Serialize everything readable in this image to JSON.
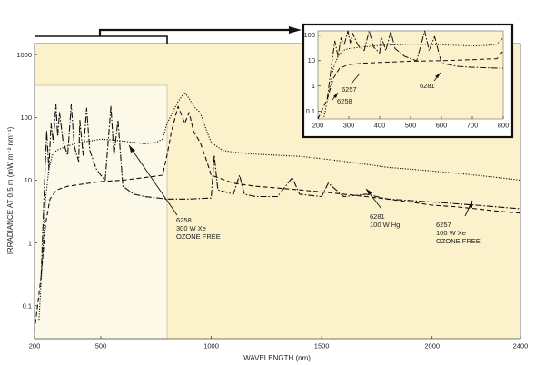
{
  "chart_data": {
    "type": "line",
    "title": "",
    "xlabel": "WAVELENGTH (nm)",
    "ylabel": "IRRADIANCE AT 0.5 m (mW m⁻² nm⁻¹)",
    "xlim": [
      200,
      2400
    ],
    "ylim": [
      0.03,
      1500
    ],
    "yscale": "log",
    "x_ticks": [
      200,
      500,
      1000,
      1500,
      2000,
      2400
    ],
    "y_ticks": [
      0.1,
      1,
      10,
      100,
      1000
    ],
    "y_tick_labels": [
      "0.1",
      "1",
      "10",
      "100",
      "1000"
    ],
    "series": [
      {
        "name": "6258 300 W Xe OZONE FREE",
        "style": "dotted",
        "x": [
          220,
          235,
          250,
          265,
          280,
          300,
          320,
          350,
          400,
          450,
          500,
          550,
          600,
          650,
          700,
          750,
          780,
          800,
          850,
          880,
          900,
          920,
          950,
          980,
          1000,
          1050,
          1100,
          1200,
          1300,
          1400,
          1500,
          1600,
          1700,
          1800,
          1900,
          2000,
          2100,
          2200,
          2300,
          2400
        ],
        "y": [
          0.06,
          0.5,
          5,
          15,
          25,
          30,
          32,
          35,
          40,
          42,
          45,
          44,
          42,
          40,
          38,
          40,
          45,
          80,
          180,
          250,
          200,
          150,
          120,
          60,
          40,
          30,
          28,
          26,
          25,
          24,
          22,
          20,
          18,
          16,
          15,
          14,
          13,
          12,
          11,
          10
        ]
      },
      {
        "name": "6281 100 W Hg",
        "style": "dash-dot",
        "x": [
          230,
          245,
          255,
          265,
          275,
          285,
          297,
          305,
          313,
          330,
          350,
          366,
          380,
          400,
          405,
          420,
          436,
          450,
          480,
          500,
          520,
          546,
          560,
          578,
          600,
          650,
          700,
          800,
          900,
          1000,
          1014,
          1030,
          1100,
          1128,
          1150,
          1200,
          1300,
          1367,
          1400,
          1500,
          1530,
          1600,
          1700,
          1800,
          2000,
          2200,
          2400
        ],
        "y": [
          0.3,
          8,
          60,
          15,
          80,
          40,
          160,
          50,
          120,
          40,
          25,
          160,
          35,
          20,
          90,
          25,
          140,
          30,
          15,
          12,
          10,
          150,
          25,
          90,
          8,
          6,
          5.5,
          5,
          5,
          5.2,
          25,
          7,
          6,
          12,
          6,
          5.5,
          5.5,
          11,
          6,
          5.5,
          9,
          5.5,
          6,
          5,
          4.5,
          4,
          3.5
        ]
      },
      {
        "name": "6257 100 W Xe OZONE FREE",
        "style": "dashed",
        "x": [
          200,
          230,
          250,
          270,
          300,
          350,
          400,
          450,
          500,
          600,
          700,
          780,
          800,
          820,
          850,
          880,
          900,
          920,
          950,
          980,
          1000,
          1100,
          1200,
          1300,
          1400,
          1500,
          1600,
          1700,
          1800,
          1900,
          2000,
          2100,
          2200,
          2300,
          2400
        ],
        "y": [
          0.04,
          0.3,
          2,
          5,
          7,
          8,
          8.5,
          9,
          9.5,
          10,
          11,
          12,
          25,
          60,
          150,
          80,
          120,
          60,
          40,
          20,
          12,
          9,
          8,
          7.5,
          7,
          6.5,
          6,
          5.5,
          5,
          4.5,
          4,
          3.8,
          3.5,
          3.2,
          3
        ]
      }
    ],
    "annotations": [
      {
        "lines": [
          "6258",
          "300 W Xe",
          "OZONE FREE"
        ]
      },
      {
        "lines": [
          "6281",
          "100 W Hg"
        ]
      },
      {
        "lines": [
          "6257",
          "100 W Xe",
          "OZONE FREE"
        ]
      }
    ],
    "inset": {
      "xlim": [
        200,
        800
      ],
      "ylim": [
        0.05,
        150
      ],
      "yscale": "log",
      "x_ticks": [
        200,
        300,
        400,
        500,
        600,
        700,
        800
      ],
      "y_ticks": [
        0.1,
        1,
        10,
        100
      ],
      "y_tick_labels": [
        "0.1",
        "1",
        "10",
        "100"
      ],
      "labels": [
        "6257",
        "6258",
        "6281"
      ]
    }
  }
}
